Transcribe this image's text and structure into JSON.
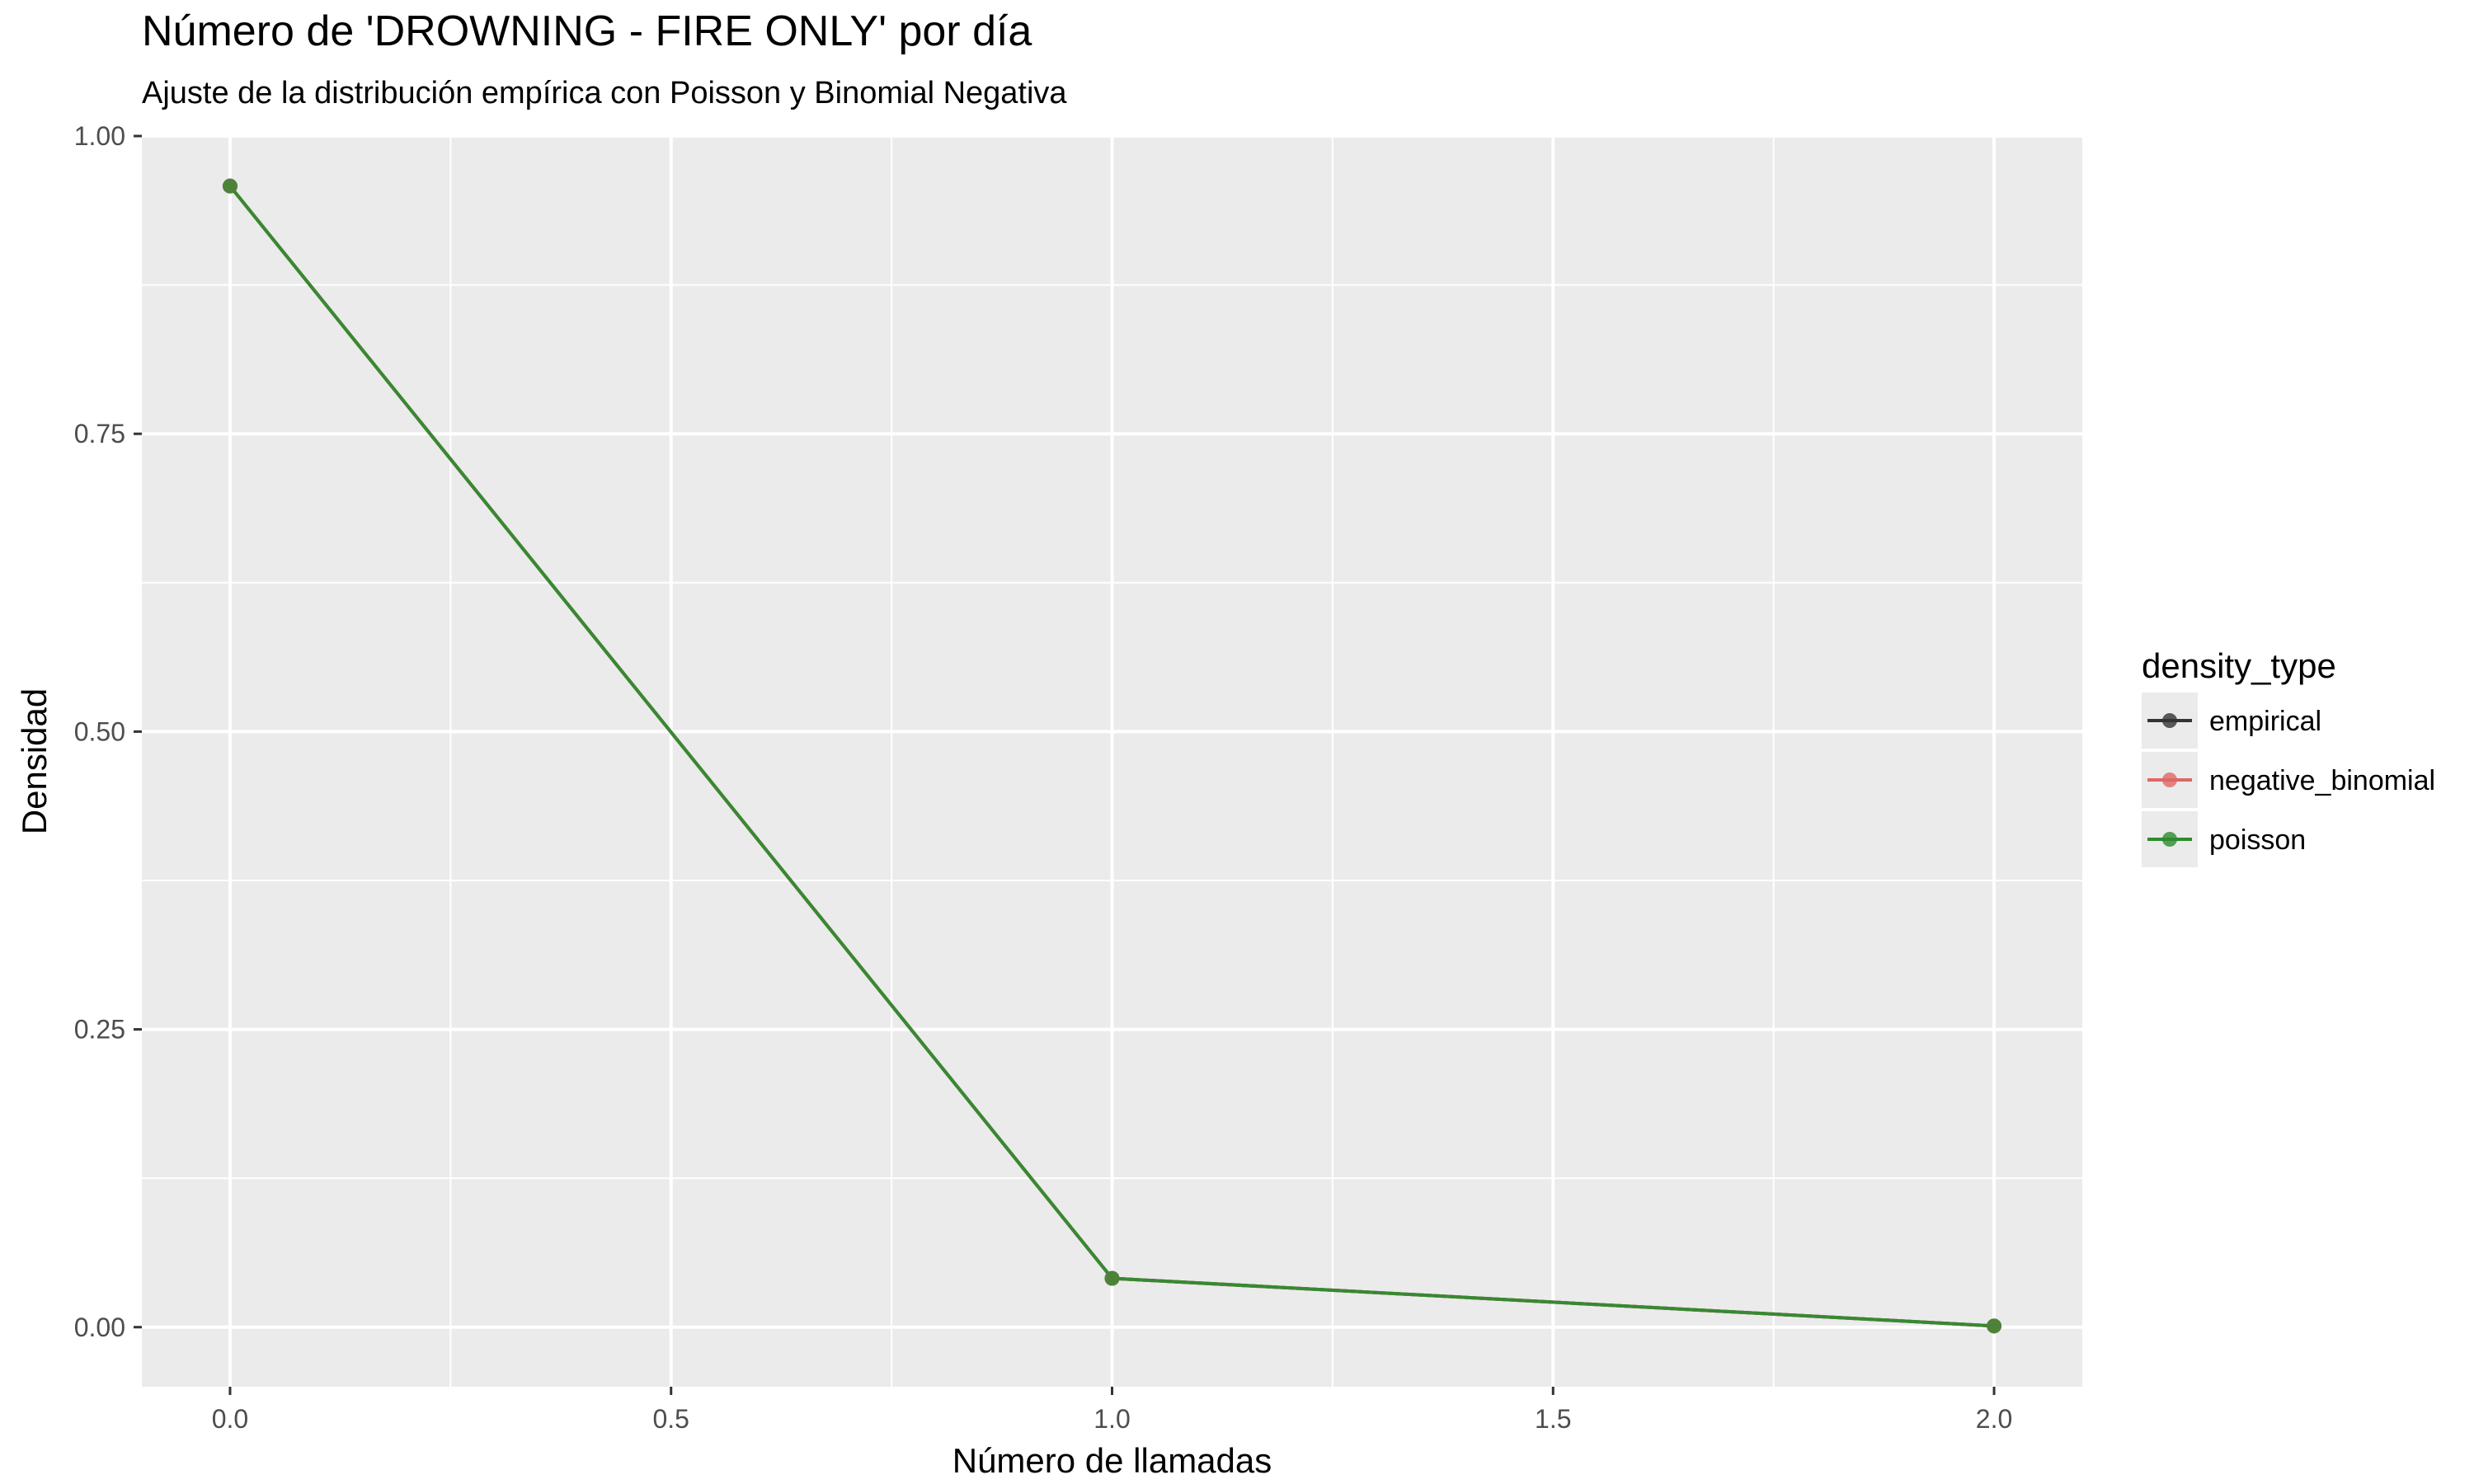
{
  "chart_data": {
    "type": "line",
    "title": "Número de 'DROWNING - FIRE ONLY' por día",
    "subtitle": "Ajuste de la distribución empírica con Poisson y Binomial Negativa",
    "xlabel": "Número de llamadas",
    "ylabel": "Densidad",
    "xlim": [
      -0.1,
      2.1
    ],
    "ylim": [
      -0.05,
      1.0
    ],
    "x_ticks": [
      0.0,
      0.5,
      1.0,
      1.5,
      2.0
    ],
    "x_tick_labels": [
      "0.0",
      "0.5",
      "1.0",
      "1.5",
      "2.0"
    ],
    "y_ticks": [
      0.0,
      0.25,
      0.5,
      0.75,
      1.0
    ],
    "y_tick_labels": [
      "0.00",
      "0.25",
      "0.50",
      "0.75",
      "1.00"
    ],
    "grid": true,
    "legend": {
      "title": "density_type",
      "position": "right"
    },
    "x": [
      0,
      1,
      2
    ],
    "series": [
      {
        "name": "empirical",
        "color": "#333333",
        "values": [
          0.958,
          0.041,
          0.001
        ]
      },
      {
        "name": "negative_binomial",
        "color": "#E06666",
        "values": [
          0.958,
          0.041,
          0.001
        ]
      },
      {
        "name": "poisson",
        "color": "#2E8B2E",
        "values": [
          0.958,
          0.041,
          0.001
        ]
      }
    ],
    "panel_background": "#EBEBEB"
  }
}
